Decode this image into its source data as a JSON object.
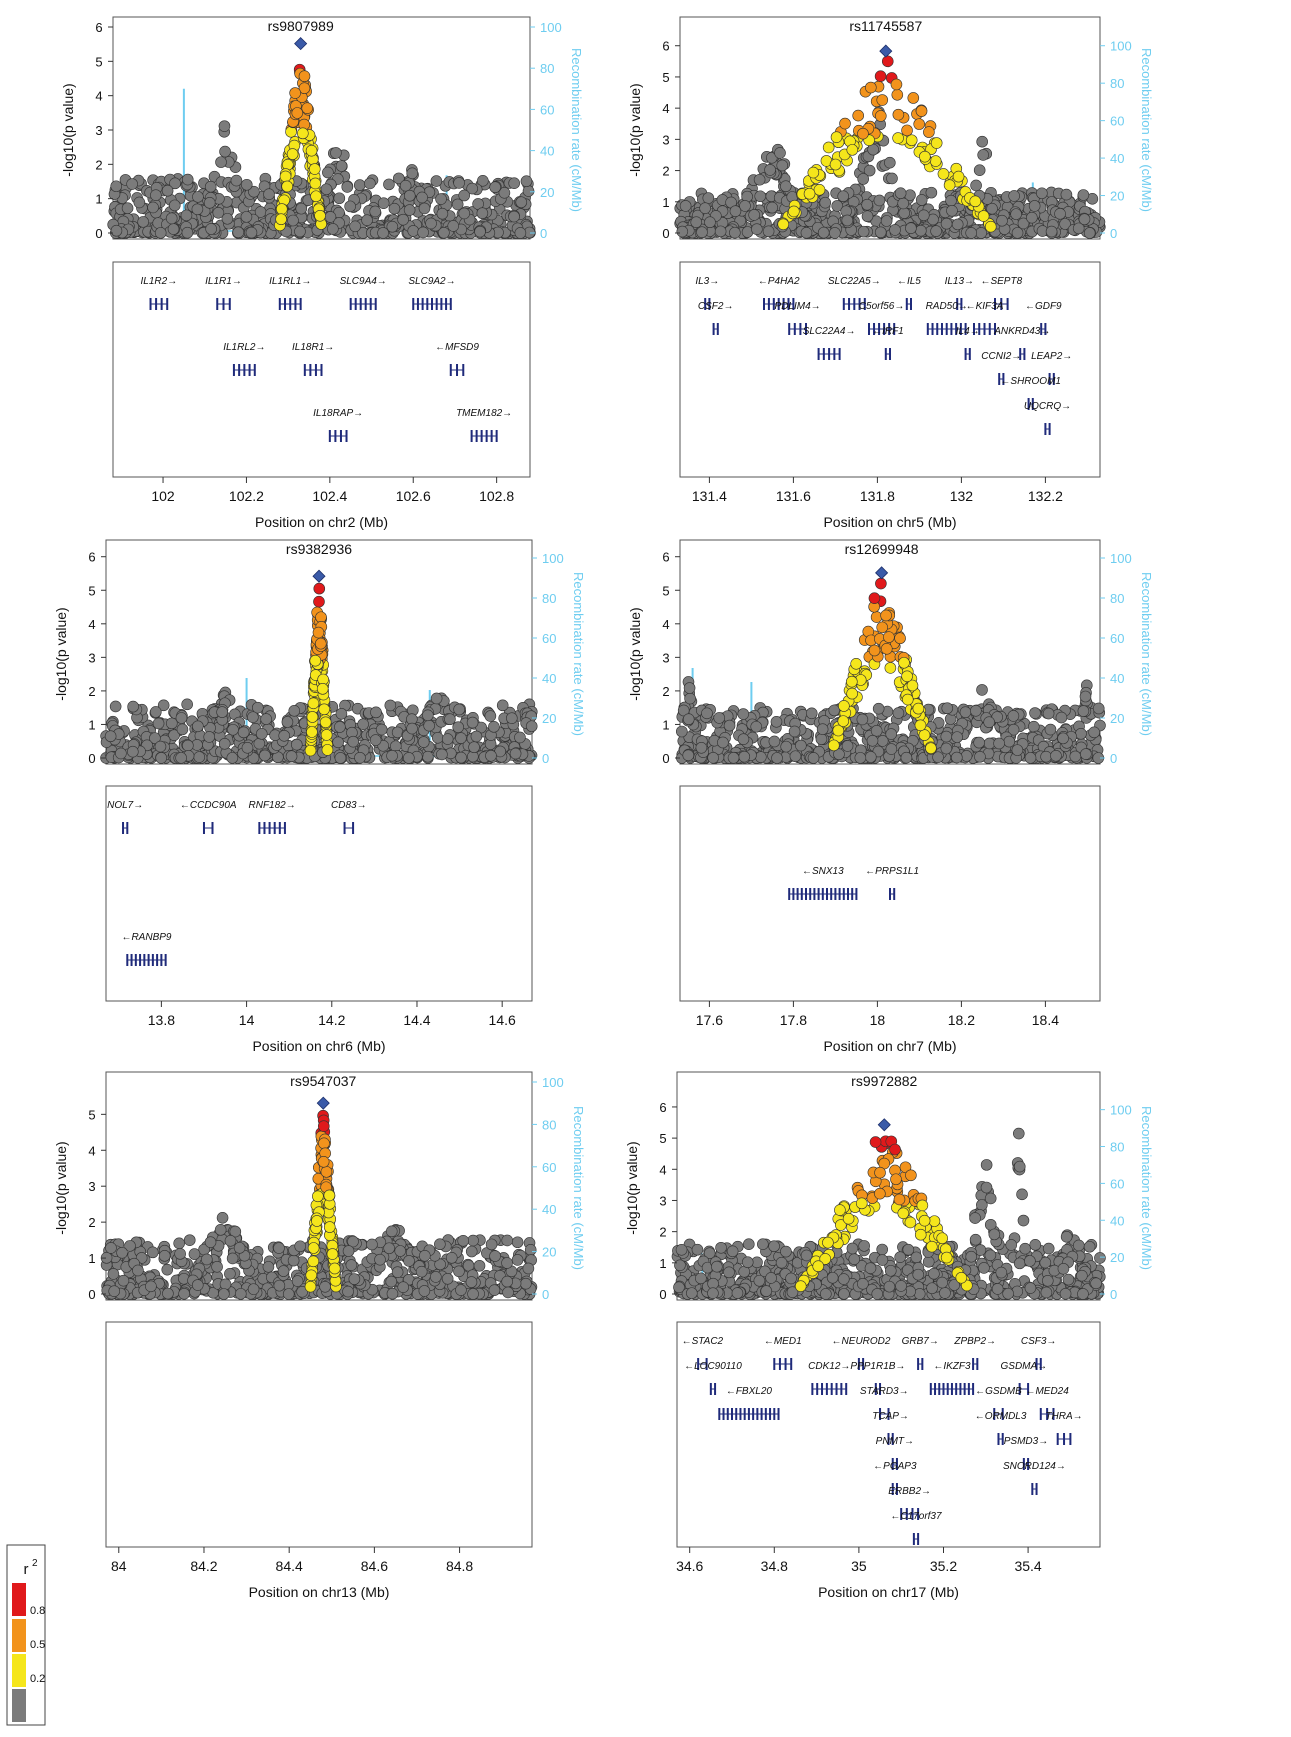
{
  "legend": {
    "title": "r",
    "title_sup": "2",
    "items": [
      {
        "label": "0.8",
        "color": "#e0191b"
      },
      {
        "label": "0.5",
        "color": "#f2931c"
      },
      {
        "label": "0.2",
        "color": "#f5e61b"
      },
      {
        "label": "",
        "color": "#7b7b7b"
      }
    ]
  },
  "colors": {
    "r2_high": "#e0191b",
    "r2_mid": "#f2931c",
    "r2_low": "#f5e61b",
    "r2_none": "#7b7b7b",
    "lead_snp": "#3a5aa8",
    "recombination": "#6ecdf0",
    "gene": "#1f2a7a"
  },
  "chart_data": [
    {
      "type": "scatter",
      "panel": "chr2",
      "title": "rs9807989",
      "ylabel": "-log10(p value)",
      "ylabel_sub": "10",
      "y2label": "Recombination rate (cM/Mb)",
      "xlabel": "Position on chr2 (Mb)",
      "xlim": [
        101.88,
        102.88
      ],
      "ylim": [
        0,
        6
      ],
      "y2lim": [
        0,
        100
      ],
      "xticks": [
        "102",
        "102.2",
        "102.4",
        "102.6",
        "102.8"
      ],
      "yticks": [
        "0",
        "1",
        "2",
        "3",
        "4",
        "5",
        "6"
      ],
      "y2ticks": [
        "0",
        "20",
        "40",
        "60",
        "80",
        "100"
      ],
      "lead_snp": {
        "x": 102.33,
        "y": 5.4
      },
      "recomb_spikes": [
        {
          "x": 102.05,
          "y": 70
        },
        {
          "x": 102.68,
          "y": 28
        }
      ],
      "genes": [
        {
          "name": "IL1R2",
          "dir": "+",
          "start": 101.97,
          "end": 102.01,
          "row": 0
        },
        {
          "name": "IL1R1",
          "dir": "+",
          "start": 102.13,
          "end": 102.16,
          "row": 0
        },
        {
          "name": "IL1RL1",
          "dir": "+",
          "start": 102.28,
          "end": 102.33,
          "row": 0
        },
        {
          "name": "SLC9A4",
          "dir": "+",
          "start": 102.45,
          "end": 102.51,
          "row": 0
        },
        {
          "name": "SLC9A2",
          "dir": "+",
          "start": 102.6,
          "end": 102.69,
          "row": 0
        },
        {
          "name": "IL1RL2",
          "dir": "+",
          "start": 102.17,
          "end": 102.22,
          "row": 1
        },
        {
          "name": "IL18R1",
          "dir": "+",
          "start": 102.34,
          "end": 102.38,
          "row": 1
        },
        {
          "name": "MFSD9",
          "dir": "-",
          "start": 102.69,
          "end": 102.72,
          "row": 1
        },
        {
          "name": "IL18RAP",
          "dir": "+",
          "start": 102.4,
          "end": 102.44,
          "row": 2
        },
        {
          "name": "TMEM182",
          "dir": "+",
          "start": 102.74,
          "end": 102.8,
          "row": 2
        }
      ]
    },
    {
      "type": "scatter",
      "panel": "chr5",
      "title": "rs11745587",
      "ylabel": "-log10(p value)",
      "ylabel_sub": "10",
      "y2label": "Recombination rate (cM/Mb)",
      "xlabel": "Position on chr5 (Mb)",
      "xlim": [
        131.33,
        132.33
      ],
      "ylim": [
        0,
        6.6
      ],
      "y2lim": [
        0,
        110
      ],
      "xticks": [
        "131.4",
        "131.6",
        "131.8",
        "132",
        "132.2"
      ],
      "yticks": [
        "0",
        "1",
        "2",
        "3",
        "4",
        "5",
        "6"
      ],
      "y2ticks": [
        "0",
        "20",
        "40",
        "60",
        "80",
        "100"
      ],
      "lead_snp": {
        "x": 131.82,
        "y": 5.7
      },
      "recomb_spikes": [
        {
          "x": 132.17,
          "y": 27
        }
      ],
      "genes": [
        {
          "name": "IL3",
          "dir": "+",
          "start": 131.39,
          "end": 131.4,
          "row": 0
        },
        {
          "name": "P4HA2",
          "dir": "-",
          "start": 131.53,
          "end": 131.6,
          "row": 0
        },
        {
          "name": "SLC22A5",
          "dir": "+",
          "start": 131.72,
          "end": 131.77,
          "row": 0
        },
        {
          "name": "IL5",
          "dir": "-",
          "start": 131.87,
          "end": 131.88,
          "row": 0
        },
        {
          "name": "IL13",
          "dir": "+",
          "start": 131.99,
          "end": 132.0,
          "row": 0
        },
        {
          "name": "SEPT8",
          "dir": "-",
          "start": 132.08,
          "end": 132.11,
          "row": 0
        },
        {
          "name": "CSF2",
          "dir": "+",
          "start": 131.41,
          "end": 131.42,
          "row": 1
        },
        {
          "name": "PDLIM4",
          "dir": "+",
          "start": 131.59,
          "end": 131.63,
          "row": 1
        },
        {
          "name": "C5orf56",
          "dir": "+",
          "start": 131.78,
          "end": 131.84,
          "row": 1
        },
        {
          "name": "RAD50",
          "dir": "+",
          "start": 131.92,
          "end": 132.01,
          "row": 1
        },
        {
          "name": "KIF3A",
          "dir": "-",
          "start": 132.03,
          "end": 132.08,
          "row": 1
        },
        {
          "name": "GDF9",
          "dir": "-",
          "start": 132.19,
          "end": 132.2,
          "row": 1
        },
        {
          "name": "SLC22A4",
          "dir": "+",
          "start": 131.66,
          "end": 131.71,
          "row": 2
        },
        {
          "name": "IRF1",
          "dir": "-",
          "start": 131.82,
          "end": 131.83,
          "row": 2
        },
        {
          "name": "IL4",
          "dir": "+",
          "start": 132.01,
          "end": 132.02,
          "row": 2
        },
        {
          "name": "ANKRD43",
          "dir": "+",
          "start": 132.14,
          "end": 132.15,
          "row": 2
        },
        {
          "name": "CCNI2",
          "dir": "+",
          "start": 132.09,
          "end": 132.1,
          "row": 3
        },
        {
          "name": "LEAP2",
          "dir": "+",
          "start": 132.21,
          "end": 132.22,
          "row": 3
        },
        {
          "name": "SHROOM1",
          "dir": "-",
          "start": 132.16,
          "end": 132.17,
          "row": 4
        },
        {
          "name": "UQCRQ",
          "dir": "+",
          "start": 132.2,
          "end": 132.21,
          "row": 5
        }
      ]
    },
    {
      "type": "scatter",
      "panel": "chr6",
      "title": "rs9382936",
      "ylabel": "-log10(p value)",
      "ylabel_sub": "10",
      "y2label": "Recombination rate (cM/Mb)",
      "xlabel": "Position on chr6 (Mb)",
      "xlim": [
        13.67,
        14.67
      ],
      "ylim": [
        0,
        6.2
      ],
      "y2lim": [
        0,
        104
      ],
      "xticks": [
        "13.8",
        "14",
        "14.2",
        "14.4",
        "14.6"
      ],
      "yticks": [
        "0",
        "1",
        "2",
        "3",
        "4",
        "5",
        "6"
      ],
      "y2ticks": [
        "0",
        "20",
        "40",
        "60",
        "80",
        "100"
      ],
      "lead_snp": {
        "x": 14.17,
        "y": 5.3
      },
      "recomb_spikes": [
        {
          "x": 14.0,
          "y": 40
        },
        {
          "x": 14.43,
          "y": 34
        }
      ],
      "genes": [
        {
          "name": "NOL7",
          "dir": "+",
          "start": 13.71,
          "end": 13.72,
          "row": 0
        },
        {
          "name": "CCDC90A",
          "dir": "-",
          "start": 13.9,
          "end": 13.92,
          "row": 0
        },
        {
          "name": "RNF182",
          "dir": "+",
          "start": 14.03,
          "end": 14.09,
          "row": 0
        },
        {
          "name": "CD83",
          "dir": "+",
          "start": 14.23,
          "end": 14.25,
          "row": 0
        },
        {
          "name": "RANBP9",
          "dir": "-",
          "start": 13.72,
          "end": 13.81,
          "row": 2
        }
      ]
    },
    {
      "type": "scatter",
      "panel": "chr7",
      "title": "rs12699948",
      "ylabel": "-log10(p value)",
      "ylabel_sub": "10",
      "y2label": "Recombination rate (cM/Mb)",
      "xlabel": "Position on chr7 (Mb)",
      "xlim": [
        17.53,
        18.53
      ],
      "ylim": [
        0,
        6.2
      ],
      "y2lim": [
        0,
        104
      ],
      "xticks": [
        "17.6",
        "17.8",
        "18",
        "18.2",
        "18.4"
      ],
      "yticks": [
        "0",
        "1",
        "2",
        "3",
        "4",
        "5",
        "6"
      ],
      "y2ticks": [
        "0",
        "20",
        "40",
        "60",
        "80",
        "100"
      ],
      "lead_snp": {
        "x": 18.01,
        "y": 5.4
      },
      "recomb_spikes": [
        {
          "x": 17.56,
          "y": 45
        },
        {
          "x": 17.7,
          "y": 38
        }
      ],
      "genes": [
        {
          "name": "SNX13",
          "dir": "-",
          "start": 17.79,
          "end": 17.95,
          "row": 1
        },
        {
          "name": "PRPS1L1",
          "dir": "-",
          "start": 18.03,
          "end": 18.04,
          "row": 1
        }
      ]
    },
    {
      "type": "scatter",
      "panel": "chr13",
      "title": "rs9547037",
      "ylabel": "-log10(p value)",
      "ylabel_sub": "10",
      "y2label": "Recombination rate (cM/Mb)",
      "xlabel": "Position on chr13 (Mb)",
      "xlim": [
        83.97,
        84.97
      ],
      "ylim": [
        0,
        5.9
      ],
      "y2lim": [
        0,
        100
      ],
      "xticks": [
        "84",
        "84.2",
        "84.4",
        "84.6",
        "84.8"
      ],
      "yticks": [
        "0",
        "1",
        "2",
        "3",
        "4",
        "5"
      ],
      "y2ticks": [
        "0",
        "20",
        "40",
        "60",
        "80",
        "100"
      ],
      "lead_snp": {
        "x": 84.48,
        "y": 5.2
      },
      "recomb_spikes": [
        {
          "x": 84.48,
          "y": 8
        }
      ],
      "genes": []
    },
    {
      "type": "scatter",
      "panel": "chr17",
      "title": "rs9972882",
      "ylabel": "-log10(p value)",
      "ylabel_sub": "10",
      "y2label": "Recombination rate (cM/Mb)",
      "xlabel": "Position on chr17 (Mb)",
      "xlim": [
        34.57,
        35.57
      ],
      "ylim": [
        0,
        6.8
      ],
      "y2lim": [
        0,
        115
      ],
      "xticks": [
        "34.6",
        "34.8",
        "35",
        "35.2",
        "35.4"
      ],
      "yticks": [
        "0",
        "1",
        "2",
        "3",
        "4",
        "5",
        "6"
      ],
      "y2ticks": [
        "0",
        "20",
        "40",
        "60",
        "80",
        "100"
      ],
      "lead_snp": {
        "x": 35.06,
        "y": 5.3
      },
      "recomb_spikes": [
        {
          "x": 34.63,
          "y": 22
        }
      ],
      "genes": [
        {
          "name": "STAC2",
          "dir": "-",
          "start": 34.62,
          "end": 34.64,
          "row": 0
        },
        {
          "name": "MED1",
          "dir": "-",
          "start": 34.8,
          "end": 34.84,
          "row": 0
        },
        {
          "name": "NEUROD2",
          "dir": "-",
          "start": 35.0,
          "end": 35.01,
          "row": 0
        },
        {
          "name": "GRB7",
          "dir": "+",
          "start": 35.14,
          "end": 35.15,
          "row": 0
        },
        {
          "name": "ZPBP2",
          "dir": "+",
          "start": 35.27,
          "end": 35.28,
          "row": 0
        },
        {
          "name": "CSF3",
          "dir": "+",
          "start": 35.42,
          "end": 35.43,
          "row": 0
        },
        {
          "name": "LOC90110",
          "dir": "-",
          "start": 34.65,
          "end": 34.66,
          "row": 1
        },
        {
          "name": "CDK12",
          "dir": "+",
          "start": 34.89,
          "end": 34.97,
          "row": 1
        },
        {
          "name": "PPP1R1B",
          "dir": "+",
          "start": 35.04,
          "end": 35.05,
          "row": 1
        },
        {
          "name": "IKZF3",
          "dir": "-",
          "start": 35.17,
          "end": 35.27,
          "row": 1
        },
        {
          "name": "GSDMA",
          "dir": "+",
          "start": 35.38,
          "end": 35.4,
          "row": 1
        },
        {
          "name": "FBXL20",
          "dir": "-",
          "start": 34.67,
          "end": 34.81,
          "row": 2
        },
        {
          "name": "STARD3",
          "dir": "+",
          "start": 35.05,
          "end": 35.07,
          "row": 2
        },
        {
          "name": "GSDMB",
          "dir": "-",
          "start": 35.32,
          "end": 35.34,
          "row": 2
        },
        {
          "name": "MED24",
          "dir": "-",
          "start": 35.43,
          "end": 35.46,
          "row": 2
        },
        {
          "name": "TCAP",
          "dir": "+",
          "start": 35.07,
          "end": 35.08,
          "row": 3
        },
        {
          "name": "ORMDL3",
          "dir": "-",
          "start": 35.33,
          "end": 35.34,
          "row": 3
        },
        {
          "name": "THRA",
          "dir": "+",
          "start": 35.47,
          "end": 35.5,
          "row": 3
        },
        {
          "name": "PNMT",
          "dir": "+",
          "start": 35.08,
          "end": 35.09,
          "row": 4
        },
        {
          "name": "PSMD3",
          "dir": "+",
          "start": 35.39,
          "end": 35.4,
          "row": 4
        },
        {
          "name": "PGAP3",
          "dir": "-",
          "start": 35.08,
          "end": 35.09,
          "row": 5
        },
        {
          "name": "SNORD124",
          "dir": "+",
          "start": 35.41,
          "end": 35.42,
          "row": 5
        },
        {
          "name": "ERBB2",
          "dir": "+",
          "start": 35.1,
          "end": 35.14,
          "row": 6
        },
        {
          "name": "C17orf37",
          "dir": "-",
          "start": 35.13,
          "end": 35.14,
          "row": 7
        }
      ]
    }
  ]
}
